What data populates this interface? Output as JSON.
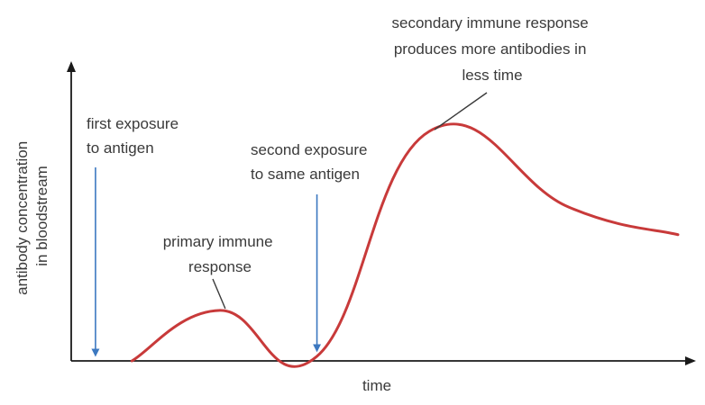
{
  "chart_data": {
    "type": "line",
    "title": "",
    "xlabel": "time",
    "ylabel_lines": [
      "antibody concentration",
      "in bloodstream"
    ],
    "grid": false,
    "legend": "none",
    "x_ticks": [],
    "y_ticks": [],
    "xlim": [
      0,
      100
    ],
    "ylim": [
      0,
      100
    ],
    "series": [
      {
        "color": "#c83a3a",
        "points": [
          {
            "x": 10,
            "y": 0
          },
          {
            "x": 24.5,
            "y": 22
          },
          {
            "x": 40.5,
            "y": 2
          },
          {
            "x": 59,
            "y": 100
          },
          {
            "x": 82,
            "y": 67
          },
          {
            "x": 100,
            "y": 55
          }
        ]
      }
    ],
    "annotations": [
      {
        "id": "first",
        "lines": [
          "first exposure",
          "to antigen"
        ],
        "kind": "arrow",
        "color": "#3c78c0",
        "target": {
          "x": 4,
          "y": 1
        }
      },
      {
        "id": "second",
        "lines": [
          "second exposure",
          "to same antigen"
        ],
        "kind": "arrow",
        "color": "#3c78c0",
        "target": {
          "x": 40.5,
          "y": 3
        }
      },
      {
        "id": "primary",
        "lines": [
          "primary immune",
          "response"
        ],
        "kind": "leader",
        "color": "#3a3a3a",
        "target": {
          "x": 24.5,
          "y": 22
        }
      },
      {
        "id": "secondary",
        "lines": [
          "secondary immune response",
          "produces more antibodies in",
          "less time"
        ],
        "kind": "leader",
        "color": "#3a3a3a",
        "target": {
          "x": 59,
          "y": 100
        }
      }
    ],
    "colors": {
      "axis": "#1a1a1a",
      "curve": "#c83a3a",
      "arrow": "#3c78c0",
      "text": "#3a3a3a"
    }
  }
}
